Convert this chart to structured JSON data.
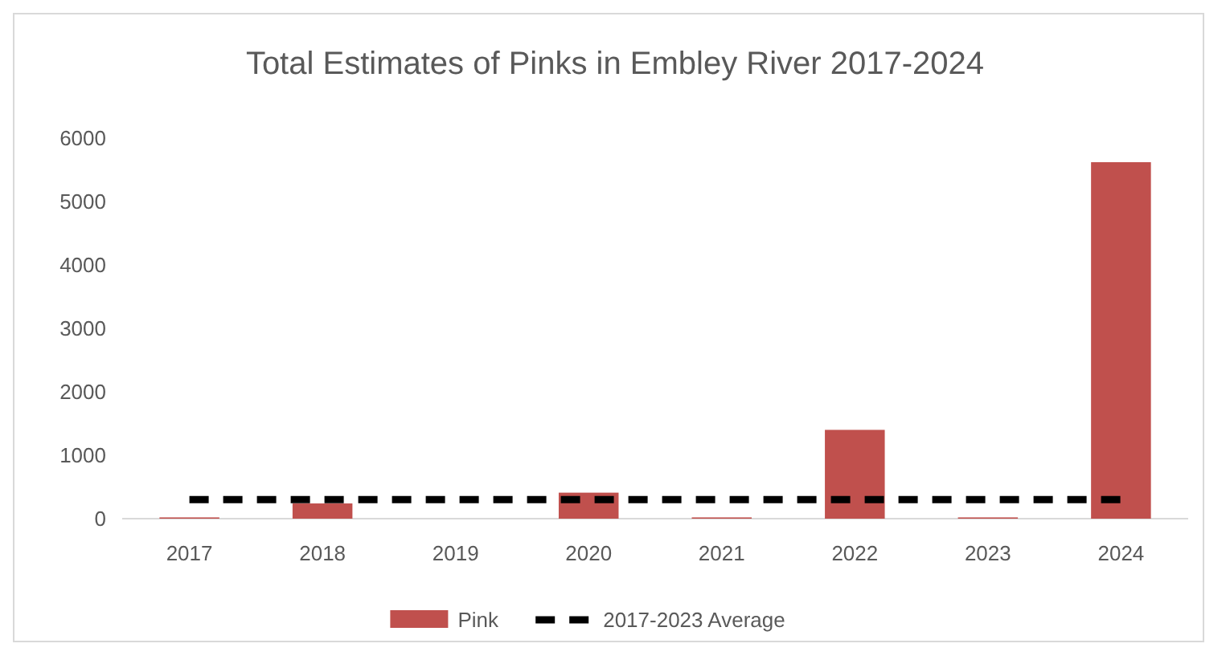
{
  "chart_data": {
    "type": "bar",
    "title": "Total Estimates of Pinks in Embley River 2017-2024",
    "categories": [
      "2017",
      "2018",
      "2019",
      "2020",
      "2021",
      "2022",
      "2023",
      "2024"
    ],
    "series": [
      {
        "name": "Pink",
        "color": "#c0504d",
        "values": [
          20,
          240,
          0,
          410,
          20,
          1400,
          20,
          5620
        ]
      },
      {
        "name": "2017-2023 Average",
        "type": "line",
        "color": "#000000",
        "line_style": "dashed",
        "values": [
          300,
          300,
          300,
          300,
          300,
          300,
          300,
          300
        ]
      }
    ],
    "ylim": [
      0,
      6000
    ],
    "yticks": [
      0,
      1000,
      2000,
      3000,
      4000,
      5000,
      6000
    ],
    "grid": false,
    "legend": "bottom"
  }
}
